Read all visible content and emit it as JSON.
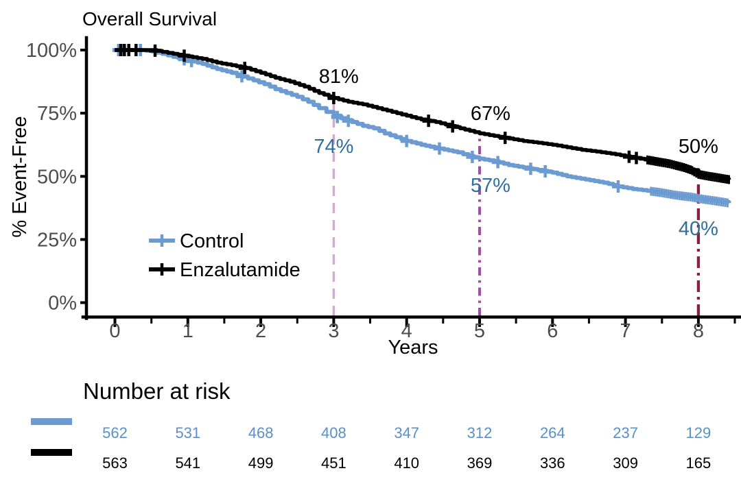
{
  "title": "Overall Survival",
  "colors": {
    "control_curve": "#6C9BD2",
    "enzalutamide_curve": "#000000",
    "control_annotation": "#2F6F9E",
    "control_risk_number": "#5A8FC7",
    "tick_label_gray": "#4D4D4D",
    "ref_year3_pink": "#DBA5D8",
    "ref_year5_purple": "#A34CA8",
    "ref_year8_maroon": "#8B203E"
  },
  "legend": [
    {
      "label": "Control",
      "color": "#6C9BD2"
    },
    {
      "label": "Enzalutamide",
      "color": "#000000"
    }
  ],
  "chart_data": {
    "type": "line",
    "subtype": "kaplan-meier-step",
    "title": "Overall Survival",
    "xlabel": "Years",
    "ylabel": "% Event-Free",
    "xlim": [
      0,
      8.5
    ],
    "ylim": [
      0,
      100
    ],
    "grid": false,
    "legend_position": "inside-left",
    "x_ticks": [
      0,
      1,
      2,
      3,
      4,
      5,
      6,
      7,
      8
    ],
    "x_minor_ticks": [
      0.5,
      1.5,
      2.5,
      3.5,
      4.5,
      5.5,
      6.5,
      7.5,
      8.5
    ],
    "y_ticks": [
      {
        "value": 100,
        "label": "100%"
      },
      {
        "value": 75,
        "label": "75%"
      },
      {
        "value": 50,
        "label": "50%"
      },
      {
        "value": 25,
        "label": "25%"
      },
      {
        "value": 0,
        "label": "0%"
      }
    ],
    "series": [
      {
        "name": "Control",
        "color": "#6C9BD2",
        "stroke_width": 6,
        "milestones": [
          {
            "x": 3,
            "value": 74
          },
          {
            "x": 5,
            "value": 57
          },
          {
            "x": 8,
            "value": 40
          }
        ],
        "points": [
          [
            0,
            100
          ],
          [
            0.35,
            100
          ],
          [
            0.5,
            99.5
          ],
          [
            0.65,
            98.5
          ],
          [
            0.8,
            97.3
          ],
          [
            1,
            96
          ],
          [
            1.2,
            94.5
          ],
          [
            1.4,
            92.5
          ],
          [
            1.6,
            91
          ],
          [
            1.75,
            89.5
          ],
          [
            1.9,
            88
          ],
          [
            2.05,
            86.5
          ],
          [
            2.2,
            84.5
          ],
          [
            2.35,
            83
          ],
          [
            2.5,
            81.5
          ],
          [
            2.65,
            79.5
          ],
          [
            2.8,
            77
          ],
          [
            2.9,
            75.5
          ],
          [
            3,
            74
          ],
          [
            3.1,
            73
          ],
          [
            3.25,
            71.5
          ],
          [
            3.4,
            70
          ],
          [
            3.55,
            69
          ],
          [
            3.7,
            67
          ],
          [
            3.85,
            65.5
          ],
          [
            4,
            64
          ],
          [
            4.2,
            62.5
          ],
          [
            4.45,
            61
          ],
          [
            4.7,
            59.5
          ],
          [
            4.85,
            58
          ],
          [
            5,
            57
          ],
          [
            5.2,
            56
          ],
          [
            5.4,
            54.5
          ],
          [
            5.6,
            53.5
          ],
          [
            5.8,
            52.5
          ],
          [
            6,
            51.5
          ],
          [
            6.2,
            50
          ],
          [
            6.45,
            48.8
          ],
          [
            6.7,
            47.5
          ],
          [
            6.9,
            46
          ],
          [
            7.1,
            45
          ],
          [
            7.3,
            44.3
          ],
          [
            7.5,
            43.5
          ],
          [
            7.7,
            42.5
          ],
          [
            7.9,
            41.8
          ],
          [
            8.05,
            41
          ],
          [
            8.25,
            40.2
          ],
          [
            8.42,
            39.4
          ]
        ],
        "censor_times": [
          0.05,
          0.1,
          0.35,
          0.95,
          1.05,
          1.74,
          3.05,
          3.2,
          4.0,
          4.45,
          4.9,
          5.25,
          5.7,
          5.9,
          6.9
        ],
        "censor_dense": {
          "from": 7.35,
          "to": 8.42,
          "step": 0.03
        }
      },
      {
        "name": "Enzalutamide",
        "color": "#000000",
        "stroke_width": 5.5,
        "milestones": [
          {
            "x": 3,
            "value": 81
          },
          {
            "x": 5,
            "value": 67
          },
          {
            "x": 8,
            "value": 50
          }
        ],
        "points": [
          [
            0,
            100
          ],
          [
            0.5,
            100
          ],
          [
            0.65,
            99.3
          ],
          [
            0.8,
            98.5
          ],
          [
            1,
            97.5
          ],
          [
            1.2,
            96.5
          ],
          [
            1.4,
            95
          ],
          [
            1.6,
            94
          ],
          [
            1.8,
            92.8
          ],
          [
            2,
            91
          ],
          [
            2.2,
            89
          ],
          [
            2.4,
            87.5
          ],
          [
            2.6,
            85.5
          ],
          [
            2.8,
            83
          ],
          [
            3,
            81
          ],
          [
            3.2,
            79.5
          ],
          [
            3.4,
            78.5
          ],
          [
            3.6,
            77
          ],
          [
            3.8,
            75.5
          ],
          [
            4,
            74
          ],
          [
            4.2,
            72.5
          ],
          [
            4.4,
            71.5
          ],
          [
            4.6,
            70
          ],
          [
            4.8,
            68.5
          ],
          [
            5,
            67
          ],
          [
            5.2,
            66
          ],
          [
            5.4,
            65
          ],
          [
            5.6,
            64
          ],
          [
            5.8,
            63.3
          ],
          [
            6,
            62.5
          ],
          [
            6.2,
            61.5
          ],
          [
            6.4,
            60.5
          ],
          [
            6.6,
            59.8
          ],
          [
            6.8,
            59
          ],
          [
            7,
            58
          ],
          [
            7.2,
            57
          ],
          [
            7.4,
            56
          ],
          [
            7.6,
            55
          ],
          [
            7.8,
            53.5
          ],
          [
            7.9,
            52.5
          ],
          [
            8.0,
            50.8
          ],
          [
            8.15,
            50
          ],
          [
            8.3,
            49.3
          ],
          [
            8.42,
            48.7
          ]
        ],
        "censor_times": [
          0.08,
          0.13,
          0.19,
          0.29,
          0.55,
          0.95,
          1.78,
          3.0,
          4.3,
          4.63,
          5.35,
          7.05,
          7.15
        ],
        "censor_dense": {
          "from": 7.3,
          "to": 8.42,
          "step": 0.028
        }
      }
    ],
    "reference_lines": [
      {
        "x": 3,
        "top_pct": 81,
        "color": "#DBA5D8",
        "style": "dashed"
      },
      {
        "x": 5,
        "top_pct": 67,
        "color": "#A34CA8",
        "style": "dashdot"
      },
      {
        "x": 8,
        "top_pct": 50,
        "color": "#8B203E",
        "style": "dashdot-long"
      }
    ],
    "annotations": [
      {
        "text": "81%",
        "x": 3.07,
        "y": 89.7,
        "color": "#000000"
      },
      {
        "text": "74%",
        "x": 3.0,
        "y": 62.0,
        "color": "#2F6F9E"
      },
      {
        "text": "67%",
        "x": 5.15,
        "y": 75.0,
        "color": "#000000"
      },
      {
        "text": "57%",
        "x": 5.15,
        "y": 46.5,
        "color": "#2F6F9E"
      },
      {
        "text": "50%",
        "x": 8.0,
        "y": 62.0,
        "color": "#000000"
      },
      {
        "text": "40%",
        "x": 8.0,
        "y": 29.4,
        "color": "#2F6F9E"
      }
    ]
  },
  "risk_table": {
    "heading": "Number at risk",
    "time_points": [
      0,
      1,
      2,
      3,
      4,
      5,
      6,
      7,
      8
    ],
    "rows": [
      {
        "name": "Control",
        "swatch_color": "#6C9BD2",
        "value_color": "#5A8FC7",
        "values": [
          "562",
          "531",
          "468",
          "408",
          "347",
          "312",
          "264",
          "237",
          "129"
        ]
      },
      {
        "name": "Enzalutamide",
        "swatch_color": "#000000",
        "value_color": "#000000",
        "values": [
          "563",
          "541",
          "499",
          "451",
          "410",
          "369",
          "336",
          "309",
          "165"
        ]
      }
    ]
  }
}
